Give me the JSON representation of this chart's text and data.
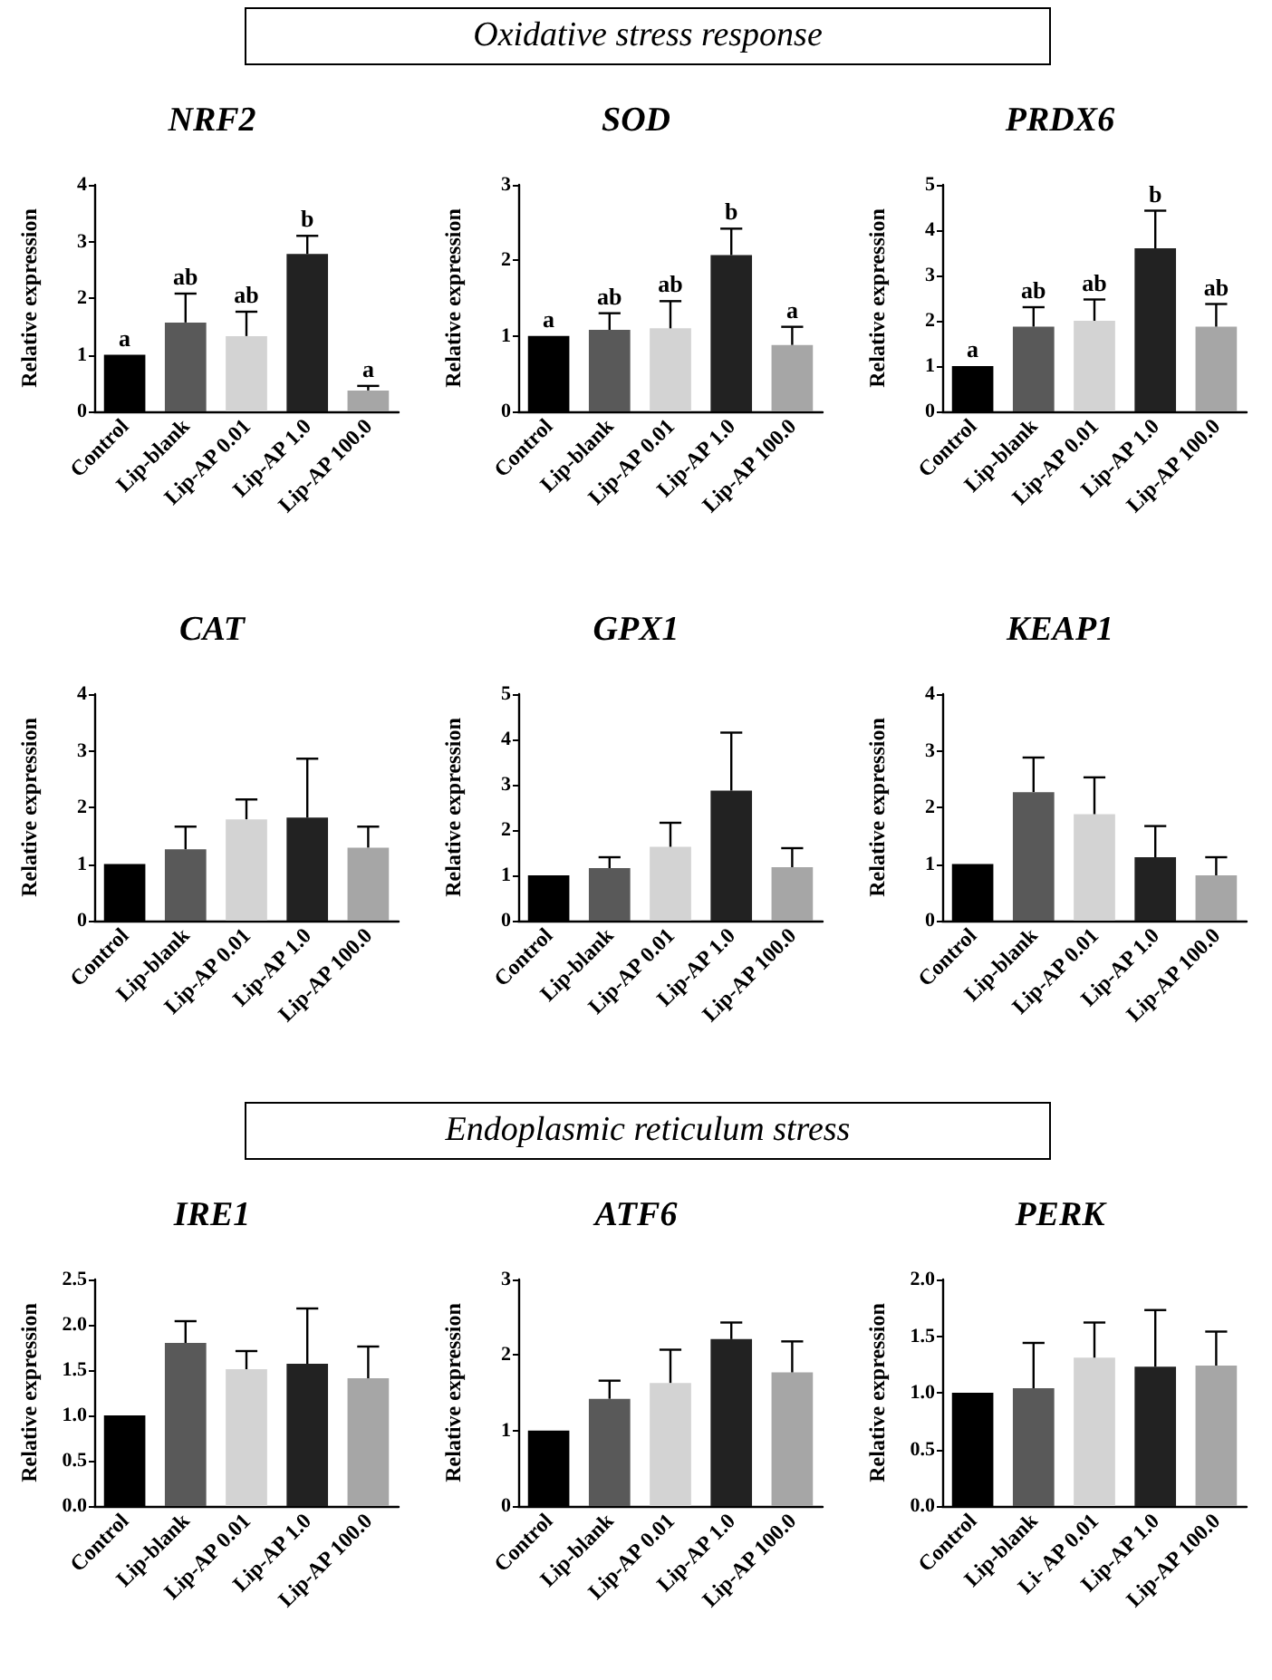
{
  "chart_data": [
    {
      "type": "other",
      "title": "Oxidative stress response"
    },
    {
      "type": "bar",
      "title": "NRF2",
      "ylabel": "Relative expression",
      "categories": [
        "Control",
        "Lip-blank",
        "Lip-AP 0.01",
        "Lip-AP 1.0",
        "Lip-AP 100.0"
      ],
      "values": [
        1,
        1.57,
        1.33,
        2.78,
        0.37
      ],
      "errors": [
        null,
        0.51,
        0.43,
        0.32,
        0.08
      ],
      "colors": [
        "#000000",
        "#595959",
        "#d3d3d3",
        "#222222",
        "#a6a6a6"
      ],
      "ylim": [
        0,
        4
      ],
      "yticks": [
        0,
        1,
        2,
        3,
        4
      ],
      "annotations": [
        {
          "text": "a",
          "x": "Control",
          "y": 1
        },
        {
          "text": "ab",
          "x": "Lip-blank",
          "y": 2.08
        },
        {
          "text": "ab",
          "x": "Lip-AP 0.01",
          "y": 1.76
        },
        {
          "text": "b",
          "x": "Lip-AP 1.0",
          "y": 3.1
        },
        {
          "text": "a",
          "x": "Lip-AP 100.0",
          "y": 0.45
        }
      ]
    },
    {
      "type": "bar",
      "title": "SOD",
      "ylabel": "Relative expression",
      "categories": [
        "Control",
        "Lip-blank",
        "Lip-AP 0.01",
        "Lip-AP 1.0",
        "Lip-AP 100.0"
      ],
      "values": [
        1,
        1.08,
        1.1,
        2.07,
        0.88
      ],
      "errors": [
        null,
        0.22,
        0.36,
        0.35,
        0.24
      ],
      "colors": [
        "#000000",
        "#595959",
        "#d3d3d3",
        "#222222",
        "#a6a6a6"
      ],
      "ylim": [
        0,
        3
      ],
      "yticks": [
        0,
        1,
        2,
        3
      ],
      "annotations": [
        {
          "text": "a",
          "x": "Control",
          "y": 1
        },
        {
          "text": "ab",
          "x": "Lip-blank",
          "y": 1.3
        },
        {
          "text": "ab",
          "x": "Lip-AP 0.01",
          "y": 1.46
        },
        {
          "text": "b",
          "x": "Lip-AP 1.0",
          "y": 2.42
        },
        {
          "text": "a",
          "x": "Lip-AP 100.0",
          "y": 1.12
        }
      ]
    },
    {
      "type": "bar",
      "title": "PRDX6",
      "ylabel": "Relative expression",
      "categories": [
        "Control",
        "Lip-blank",
        "Lip-AP 0.01",
        "Lip-AP 1.0",
        "Lip-AP 100.0"
      ],
      "values": [
        1,
        1.87,
        2.0,
        3.6,
        1.87
      ],
      "errors": [
        null,
        0.43,
        0.47,
        0.83,
        0.5
      ],
      "colors": [
        "#000000",
        "#595959",
        "#d3d3d3",
        "#222222",
        "#a6a6a6"
      ],
      "ylim": [
        0,
        5
      ],
      "yticks": [
        0,
        1,
        2,
        3,
        4,
        5
      ],
      "annotations": [
        {
          "text": "a",
          "x": "Control",
          "y": 1
        },
        {
          "text": "ab",
          "x": "Lip-blank",
          "y": 2.3
        },
        {
          "text": "ab",
          "x": "Lip-AP 0.01",
          "y": 2.47
        },
        {
          "text": "b",
          "x": "Lip-AP 1.0",
          "y": 4.43
        },
        {
          "text": "ab",
          "x": "Lip-AP 100.0",
          "y": 2.37
        }
      ]
    },
    {
      "type": "bar",
      "title": "CAT",
      "ylabel": "Relative expression",
      "categories": [
        "Control",
        "Lip-blank",
        "Lip-AP 0.01",
        "Lip-AP 1.0",
        "Lip-AP 100.0"
      ],
      "values": [
        1,
        1.26,
        1.79,
        1.82,
        1.29
      ],
      "errors": [
        null,
        0.4,
        0.35,
        1.04,
        0.37
      ],
      "colors": [
        "#000000",
        "#595959",
        "#d3d3d3",
        "#222222",
        "#a6a6a6"
      ],
      "ylim": [
        0,
        4
      ],
      "yticks": [
        0,
        1,
        2,
        3,
        4
      ]
    },
    {
      "type": "bar",
      "title": "GPX1",
      "ylabel": "Relative expression",
      "categories": [
        "Control",
        "Lip-blank",
        "Lip-AP 0.01",
        "Lip-AP 1.0",
        "Lip-AP 100.0"
      ],
      "values": [
        1,
        1.16,
        1.63,
        2.87,
        1.18
      ],
      "errors": [
        null,
        0.24,
        0.53,
        1.28,
        0.42
      ],
      "colors": [
        "#000000",
        "#595959",
        "#d3d3d3",
        "#222222",
        "#a6a6a6"
      ],
      "ylim": [
        0,
        5
      ],
      "yticks": [
        0,
        1,
        2,
        3,
        4,
        5
      ]
    },
    {
      "type": "bar",
      "title": "KEAP1",
      "ylabel": "Relative expression",
      "categories": [
        "Control",
        "Lip-blank",
        "Lip-AP 0.01",
        "Lip-AP 1.0",
        "Lip-AP 100.0"
      ],
      "values": [
        1,
        2.27,
        1.88,
        1.12,
        0.8
      ],
      "errors": [
        null,
        0.61,
        0.65,
        0.55,
        0.32
      ],
      "colors": [
        "#000000",
        "#595959",
        "#d3d3d3",
        "#222222",
        "#a6a6a6"
      ],
      "ylim": [
        0,
        4
      ],
      "yticks": [
        0,
        1,
        2,
        3,
        4
      ]
    },
    {
      "type": "other",
      "title": "Endoplasmic reticulum stress"
    },
    {
      "type": "bar",
      "title": "IRE1",
      "ylabel": "Relative expression",
      "categories": [
        "Control",
        "Lip-blank",
        "Lip-AP 0.01",
        "Lip-AP 1.0",
        "Lip-AP 100.0"
      ],
      "values": [
        1,
        1.8,
        1.51,
        1.57,
        1.41
      ],
      "errors": [
        null,
        0.24,
        0.2,
        0.61,
        0.35
      ],
      "colors": [
        "#000000",
        "#595959",
        "#d3d3d3",
        "#222222",
        "#a6a6a6"
      ],
      "ylim": [
        0,
        2.5
      ],
      "yticks": [
        {
          "value": 0,
          "label": "0.0"
        },
        {
          "value": 0.5,
          "label": "0.5"
        },
        {
          "value": 1,
          "label": "1.0"
        },
        {
          "value": 1.5,
          "label": "1.5"
        },
        {
          "value": 2,
          "label": "2.0"
        },
        {
          "value": 2.5,
          "label": "2.5"
        }
      ]
    },
    {
      "type": "bar",
      "title": "ATF6",
      "ylabel": "Relative expression",
      "categories": [
        "Control",
        "Lip-blank",
        "Lip-AP 0.01",
        "Lip-AP 1.0",
        "Lip-AP 100.0"
      ],
      "values": [
        1,
        1.42,
        1.63,
        2.21,
        1.77
      ],
      "errors": [
        null,
        0.24,
        0.44,
        0.22,
        0.41
      ],
      "colors": [
        "#000000",
        "#595959",
        "#d3d3d3",
        "#222222",
        "#a6a6a6"
      ],
      "ylim": [
        0,
        3
      ],
      "yticks": [
        0,
        1,
        2,
        3
      ]
    },
    {
      "type": "bar",
      "title": "PERK",
      "ylabel": "Relative expression",
      "categories": [
        "Control",
        "Lip-blank",
        "Li- AP 0.01",
        "Lip-AP 1.0",
        "Lip-AP 100.0"
      ],
      "values": [
        1,
        1.04,
        1.31,
        1.23,
        1.24
      ],
      "errors": [
        null,
        0.4,
        0.31,
        0.5,
        0.3
      ],
      "colors": [
        "#000000",
        "#595959",
        "#d3d3d3",
        "#222222",
        "#a6a6a6"
      ],
      "ylim": [
        0,
        2
      ],
      "yticks": [
        {
          "value": 0,
          "label": "0.0"
        },
        {
          "value": 0.5,
          "label": "0.5"
        },
        {
          "value": 1,
          "label": "1.0"
        },
        {
          "value": 1.5,
          "label": "1.5"
        },
        {
          "value": 2,
          "label": "2.0"
        }
      ]
    }
  ]
}
